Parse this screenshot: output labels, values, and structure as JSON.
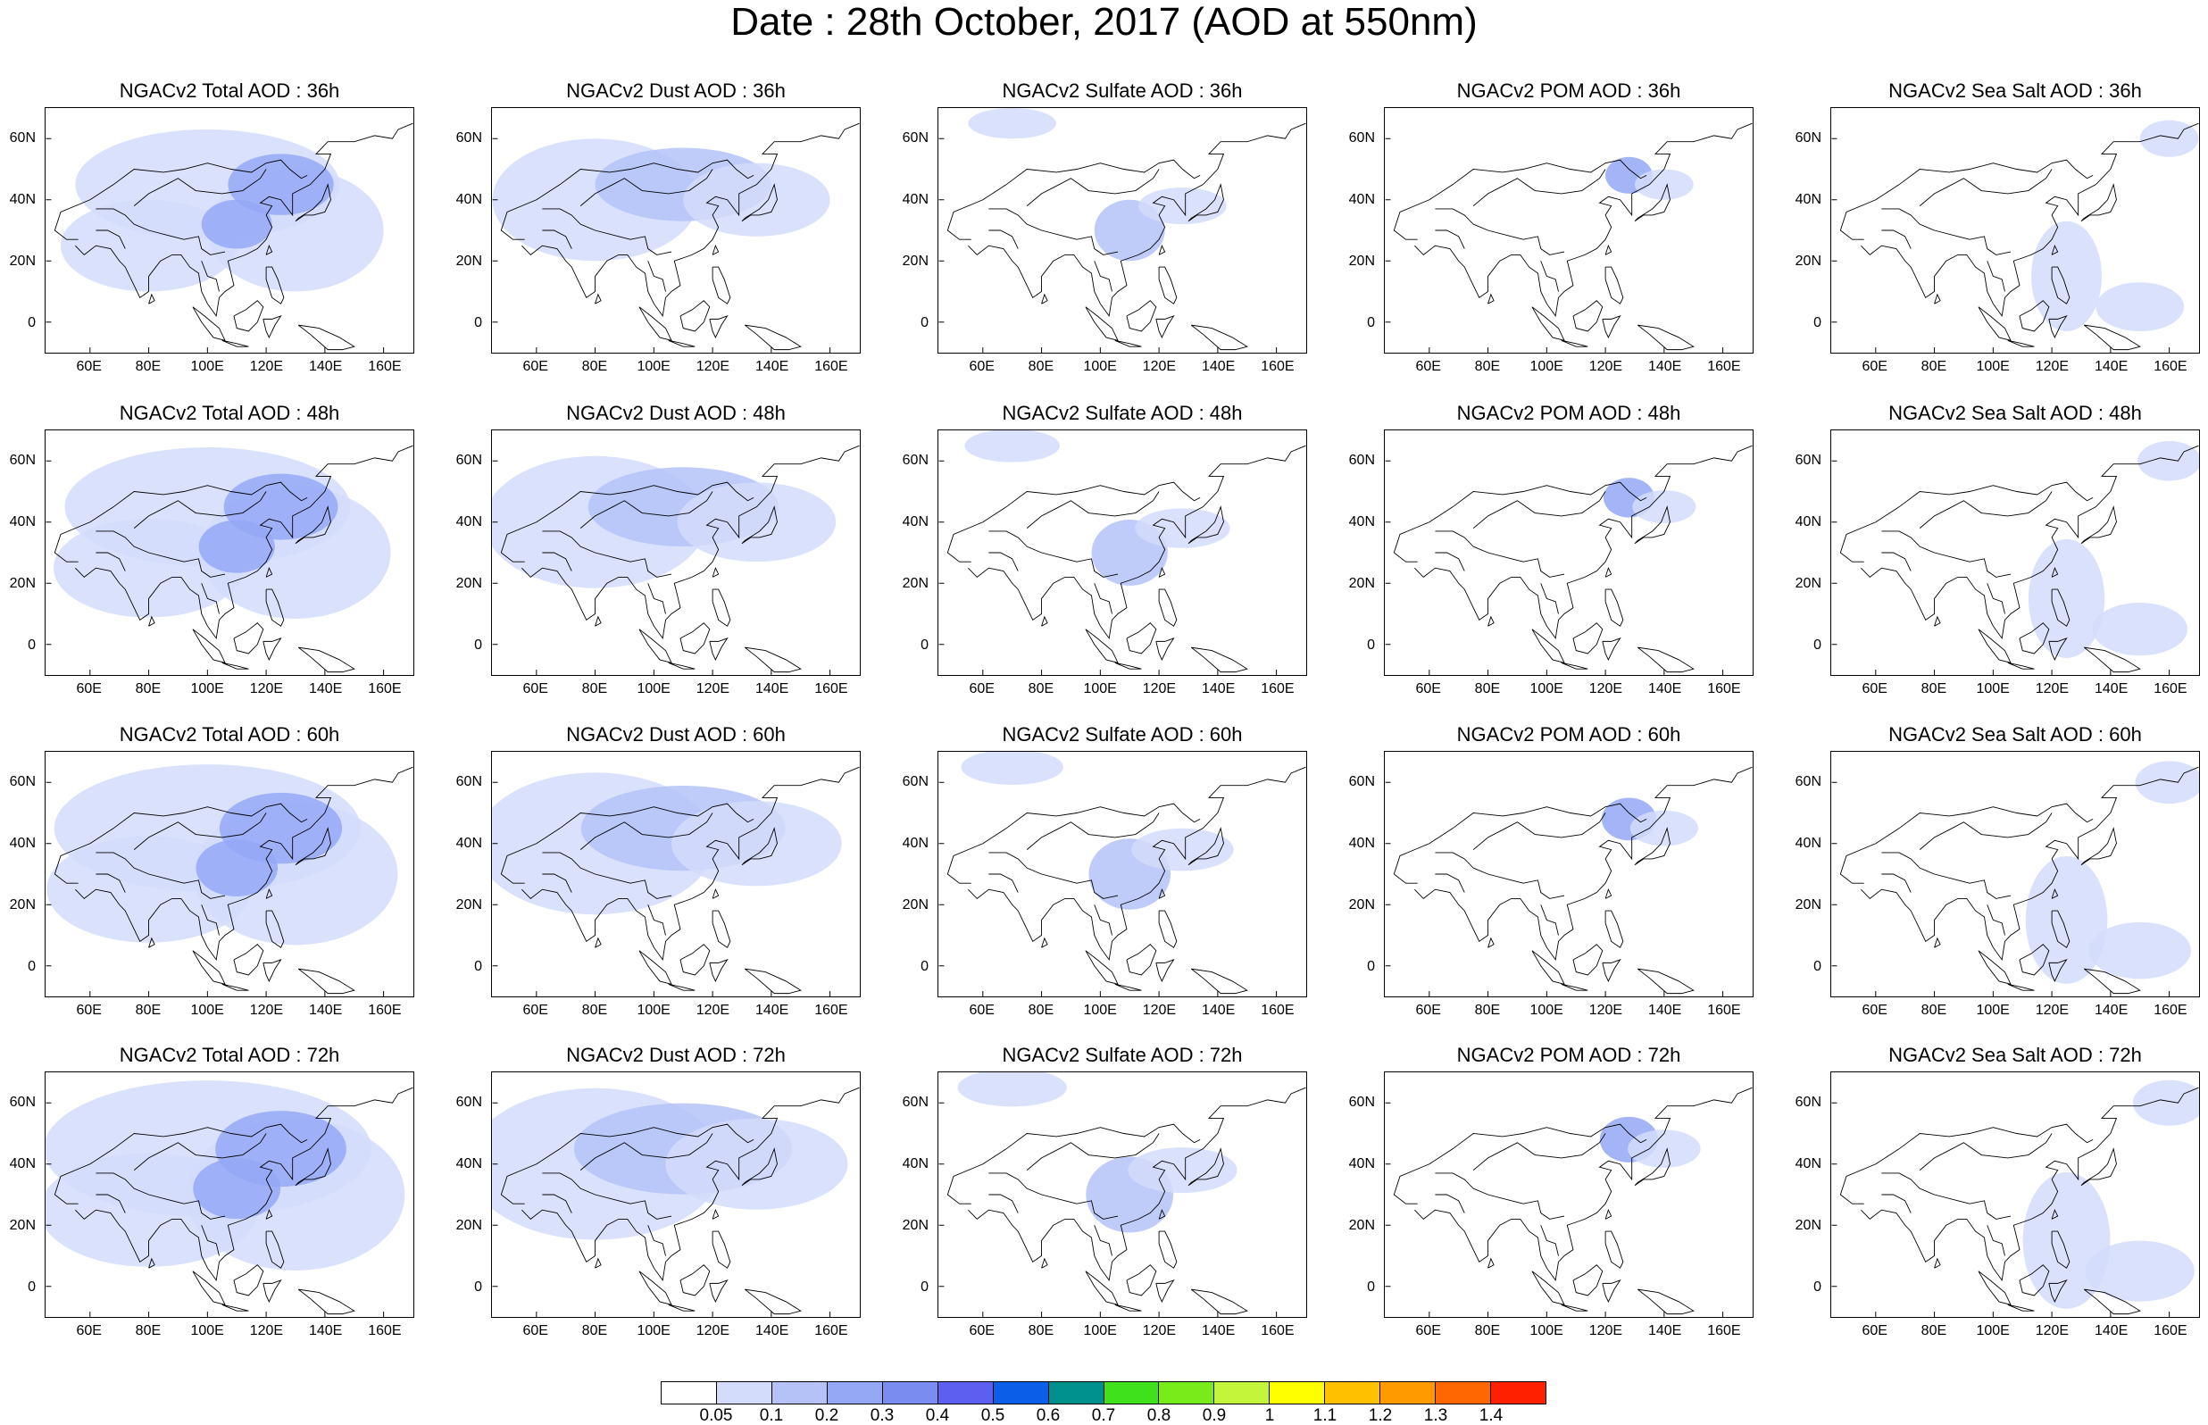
{
  "title": "Date : 28th October, 2017 (AOD at 550nm)",
  "rows": [
    "36h",
    "48h",
    "60h",
    "72h"
  ],
  "panels": [
    [
      "NGACv2 Total AOD : 36h",
      "NGACv2 Dust AOD : 36h",
      "NGACv2 Sulfate AOD : 36h",
      "NGACv2 POM AOD : 36h",
      "NGACv2 Sea Salt AOD : 36h"
    ],
    [
      "NGACv2 Total AOD : 48h",
      "NGACv2 Dust AOD : 48h",
      "NGACv2 Sulfate AOD : 48h",
      "NGACv2 POM AOD : 48h",
      "NGACv2 Sea Salt AOD : 48h"
    ],
    [
      "NGACv2 Total AOD : 60h",
      "NGACv2 Dust AOD : 60h",
      "NGACv2 Sulfate AOD : 60h",
      "NGACv2 POM AOD : 60h",
      "NGACv2 Sea Salt AOD : 60h"
    ],
    [
      "NGACv2 Total AOD : 72h",
      "NGACv2 Dust AOD : 72h",
      "NGACv2 Sulfate AOD : 72h",
      "NGACv2 POM AOD : 72h",
      "NGACv2 Sea Salt  AOD : 72h"
    ]
  ],
  "map": {
    "lon_range": [
      45,
      170
    ],
    "lat_range": [
      -10,
      70
    ],
    "lon_ticks": [
      "60E",
      "80E",
      "100E",
      "120E",
      "140E",
      "160E"
    ],
    "lat_ticks": [
      "60N",
      "40N",
      "20N",
      "0"
    ]
  },
  "colorbar": {
    "labels": [
      "0.05",
      "0.1",
      "0.2",
      "0.3",
      "0.4",
      "0.5",
      "0.6",
      "0.7",
      "0.8",
      "0.9",
      "1",
      "1.1",
      "1.2",
      "1.3",
      "1.4"
    ],
    "colors": [
      "#ffffff",
      "#d4dcfb",
      "#b4c2f8",
      "#94a8f6",
      "#7b8cf0",
      "#5c5ff0",
      "#0a5ee8",
      "#00908c",
      "#3fe01c",
      "#78ec1a",
      "#c4f53a",
      "#ffff00",
      "#ffc000",
      "#ff9a00",
      "#ff6800",
      "#ff2000"
    ]
  },
  "species": [
    {
      "name": "Total",
      "blobs": [
        {
          "lon": 100,
          "lat": 45,
          "rlon": 45,
          "rlat": 18,
          "level": 1
        },
        {
          "lon": 80,
          "lat": 25,
          "rlon": 30,
          "rlat": 15,
          "level": 1
        },
        {
          "lon": 130,
          "lat": 30,
          "rlon": 30,
          "rlat": 20,
          "level": 1
        },
        {
          "lon": 125,
          "lat": 45,
          "rlon": 18,
          "rlat": 10,
          "level": 3
        },
        {
          "lon": 110,
          "lat": 32,
          "rlon": 12,
          "rlat": 8,
          "level": 3
        }
      ]
    },
    {
      "name": "Dust",
      "blobs": [
        {
          "lon": 80,
          "lat": 40,
          "rlon": 35,
          "rlat": 20,
          "level": 1
        },
        {
          "lon": 110,
          "lat": 45,
          "rlon": 30,
          "rlat": 12,
          "level": 2
        },
        {
          "lon": 135,
          "lat": 40,
          "rlon": 25,
          "rlat": 12,
          "level": 1
        }
      ]
    },
    {
      "name": "Sulfate",
      "blobs": [
        {
          "lon": 110,
          "lat": 30,
          "rlon": 12,
          "rlat": 10,
          "level": 2
        },
        {
          "lon": 128,
          "lat": 38,
          "rlon": 15,
          "rlat": 6,
          "level": 1
        },
        {
          "lon": 70,
          "lat": 65,
          "rlon": 15,
          "rlat": 5,
          "level": 1
        }
      ]
    },
    {
      "name": "POM",
      "blobs": [
        {
          "lon": 128,
          "lat": 48,
          "rlon": 8,
          "rlat": 6,
          "level": 3
        },
        {
          "lon": 140,
          "lat": 45,
          "rlon": 10,
          "rlat": 5,
          "level": 1
        }
      ]
    },
    {
      "name": "Sea Salt",
      "blobs": [
        {
          "lon": 125,
          "lat": 15,
          "rlon": 12,
          "rlat": 18,
          "level": 1
        },
        {
          "lon": 150,
          "lat": 5,
          "rlon": 15,
          "rlat": 8,
          "level": 1
        },
        {
          "lon": 160,
          "lat": 60,
          "rlon": 10,
          "rlat": 6,
          "level": 1
        }
      ]
    }
  ]
}
